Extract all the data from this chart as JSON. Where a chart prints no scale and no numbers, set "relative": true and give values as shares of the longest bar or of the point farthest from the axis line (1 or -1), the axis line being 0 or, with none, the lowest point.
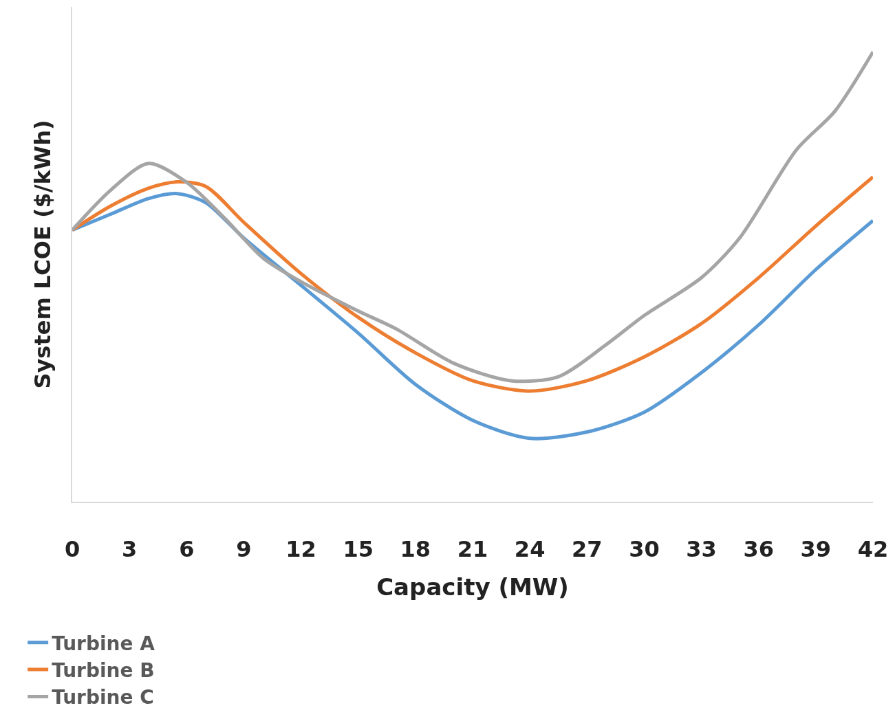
{
  "chart_data": {
    "type": "line",
    "relative": true,
    "xlabel": "Capacity (MW)",
    "ylabel": "System LCOE ($/kWh)",
    "xlim": [
      0,
      42
    ],
    "xticks": [
      0,
      3,
      6,
      9,
      12,
      15,
      18,
      21,
      24,
      27,
      30,
      33,
      36,
      39,
      42
    ],
    "legend": "bottom left",
    "marker": "none",
    "line_style": "solid",
    "series": [
      {
        "name": "Turbine A",
        "color": "#5b9bd5",
        "x": [
          0,
          2,
          4,
          5.5,
          7,
          9,
          12,
          15,
          18,
          21,
          24,
          27,
          30,
          33,
          36,
          39,
          42
        ],
        "values": [
          0.604,
          0.639,
          0.674,
          0.685,
          0.665,
          0.586,
          0.481,
          0.375,
          0.261,
          0.181,
          0.141,
          0.155,
          0.199,
          0.287,
          0.393,
          0.516,
          0.625
        ]
      },
      {
        "name": "Turbine B",
        "color": "#ed7d31",
        "x": [
          0,
          2,
          4,
          5.5,
          7,
          9,
          12,
          15,
          18,
          21,
          24,
          27,
          30,
          33,
          36,
          39,
          42
        ],
        "values": [
          0.604,
          0.657,
          0.697,
          0.711,
          0.701,
          0.621,
          0.507,
          0.41,
          0.331,
          0.269,
          0.246,
          0.269,
          0.322,
          0.396,
          0.498,
          0.613,
          0.722
        ]
      },
      {
        "name": "Turbine C",
        "color": "#a5a5a5",
        "x": [
          0,
          2,
          4,
          6,
          8,
          10,
          12,
          15,
          17,
          20,
          23,
          25.5,
          28,
          30,
          33,
          35,
          38,
          40,
          42
        ],
        "values": [
          0.604,
          0.692,
          0.752,
          0.71,
          0.63,
          0.542,
          0.489,
          0.424,
          0.384,
          0.308,
          0.269,
          0.278,
          0.349,
          0.414,
          0.498,
          0.586,
          0.783,
          0.868,
          1.0
        ]
      }
    ]
  }
}
